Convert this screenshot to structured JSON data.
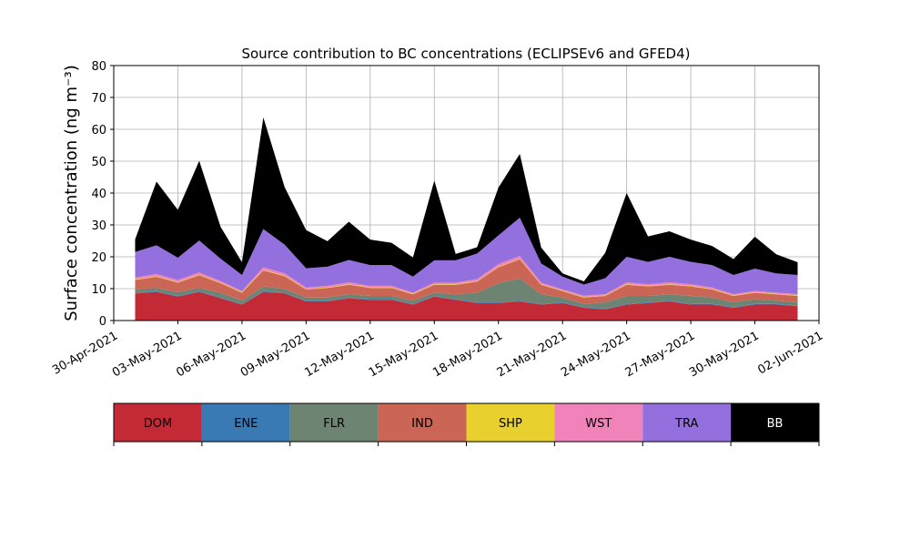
{
  "chart_data": {
    "type": "area",
    "stacked": true,
    "title": "Source contribution to BC concentrations (ECLIPSEv6 and GFED4)",
    "ylabel": "Surface concentration (ng m⁻³)",
    "xlabel": "",
    "ylim": [
      0,
      80
    ],
    "xlim": [
      "2021-04-30",
      "2021-06-02"
    ],
    "grid": true,
    "yticks": [
      0,
      10,
      20,
      30,
      40,
      50,
      60,
      70,
      80
    ],
    "xticks": [
      "30-Apr-2021",
      "03-May-2021",
      "06-May-2021",
      "09-May-2021",
      "12-May-2021",
      "15-May-2021",
      "18-May-2021",
      "21-May-2021",
      "24-May-2021",
      "27-May-2021",
      "30-May-2021",
      "02-Jun-2021"
    ],
    "x": [
      "2021-05-01",
      "2021-05-02",
      "2021-05-03",
      "2021-05-04",
      "2021-05-05",
      "2021-05-06",
      "2021-05-07",
      "2021-05-08",
      "2021-05-09",
      "2021-05-10",
      "2021-05-11",
      "2021-05-12",
      "2021-05-13",
      "2021-05-14",
      "2021-05-15",
      "2021-05-16",
      "2021-05-17",
      "2021-05-18",
      "2021-05-19",
      "2021-05-20",
      "2021-05-21",
      "2021-05-22",
      "2021-05-23",
      "2021-05-24",
      "2021-05-25",
      "2021-05-26",
      "2021-05-27",
      "2021-05-28",
      "2021-05-29",
      "2021-05-30",
      "2021-05-31",
      "2021-06-01"
    ],
    "series": [
      {
        "name": "DOM",
        "color": "#c42a35",
        "values": [
          8.5,
          9,
          7.5,
          9,
          7,
          5,
          9,
          8.5,
          6,
          6,
          7,
          6.5,
          6.5,
          5,
          7.5,
          6.5,
          5.5,
          5.5,
          6,
          5,
          5.5,
          4,
          3.5,
          5,
          5.5,
          6,
          5,
          5,
          4,
          5,
          5,
          4.5
        ]
      },
      {
        "name": "ENE",
        "color": "#3a7ab4",
        "values": [
          0.2,
          0.2,
          0.2,
          0.2,
          0.2,
          0.2,
          0.2,
          0.2,
          0.2,
          0.2,
          0.2,
          0.2,
          0.2,
          0.2,
          0.2,
          0.2,
          0.2,
          0.2,
          0.2,
          0.2,
          0.2,
          0.2,
          0.2,
          0.2,
          0.2,
          0.2,
          0.2,
          0.2,
          0.2,
          0.2,
          0.2,
          0.2
        ]
      },
      {
        "name": "FLR",
        "color": "#6e8472",
        "values": [
          1,
          1,
          1.2,
          1,
          1.5,
          1,
          1.5,
          1.2,
          1,
          1,
          1,
          1,
          1,
          1,
          1,
          1.5,
          3,
          6,
          7,
          3,
          1.5,
          1,
          2,
          2.5,
          2,
          2,
          2.5,
          2,
          1.5,
          1.5,
          1,
          1
        ]
      },
      {
        "name": "IND",
        "color": "#cb6656",
        "values": [
          3,
          3.5,
          3,
          4,
          3,
          2.5,
          5,
          4,
          2.5,
          3,
          3,
          2.5,
          2.5,
          2,
          2.5,
          3,
          3.5,
          5,
          6,
          3,
          2,
          2,
          2,
          3.5,
          3,
          3,
          3,
          2.5,
          2,
          2,
          2,
          2
        ]
      },
      {
        "name": "SHP",
        "color": "#e8d02e",
        "values": [
          0.2,
          0.2,
          0.2,
          0.2,
          0.2,
          0.2,
          0.2,
          0.2,
          0.2,
          0.2,
          0.2,
          0.2,
          0.2,
          0.2,
          0.2,
          0.2,
          0.2,
          0.2,
          0.2,
          0.2,
          0.2,
          0.2,
          0.2,
          0.2,
          0.2,
          0.2,
          0.2,
          0.2,
          0.2,
          0.2,
          0.2,
          0.2
        ]
      },
      {
        "name": "WST",
        "color": "#f083ba",
        "values": [
          0.6,
          0.7,
          0.6,
          0.7,
          0.5,
          0.4,
          0.8,
          0.7,
          0.5,
          0.5,
          0.6,
          0.5,
          0.5,
          0.4,
          0.5,
          0.5,
          0.6,
          0.8,
          0.9,
          0.5,
          0.4,
          0.4,
          0.4,
          0.6,
          0.5,
          0.6,
          0.5,
          0.5,
          0.4,
          0.4,
          0.4,
          0.4
        ]
      },
      {
        "name": "TRA",
        "color": "#946fde",
        "values": [
          8,
          9,
          7,
          10,
          7,
          5,
          12,
          9,
          6,
          6,
          7,
          6.5,
          6.5,
          5,
          7,
          7,
          8,
          9,
          12,
          6,
          4,
          3.5,
          5,
          8,
          7,
          8,
          7,
          7,
          6,
          7,
          6,
          6
        ]
      },
      {
        "name": "BB",
        "color": "#000000",
        "values": [
          4,
          20,
          15,
          25,
          10,
          4,
          35,
          18,
          12,
          8,
          12,
          8,
          7,
          6,
          25,
          2,
          2,
          15,
          20,
          5,
          1,
          1,
          8,
          20,
          8,
          8,
          7,
          6,
          5,
          10,
          6,
          4
        ]
      }
    ],
    "legend": {
      "placement": "bottom",
      "items": [
        "DOM",
        "ENE",
        "FLR",
        "IND",
        "SHP",
        "WST",
        "TRA",
        "BB"
      ],
      "text_colors": [
        "#000000",
        "#000000",
        "#000000",
        "#000000",
        "#000000",
        "#000000",
        "#000000",
        "#ffffff"
      ]
    }
  }
}
